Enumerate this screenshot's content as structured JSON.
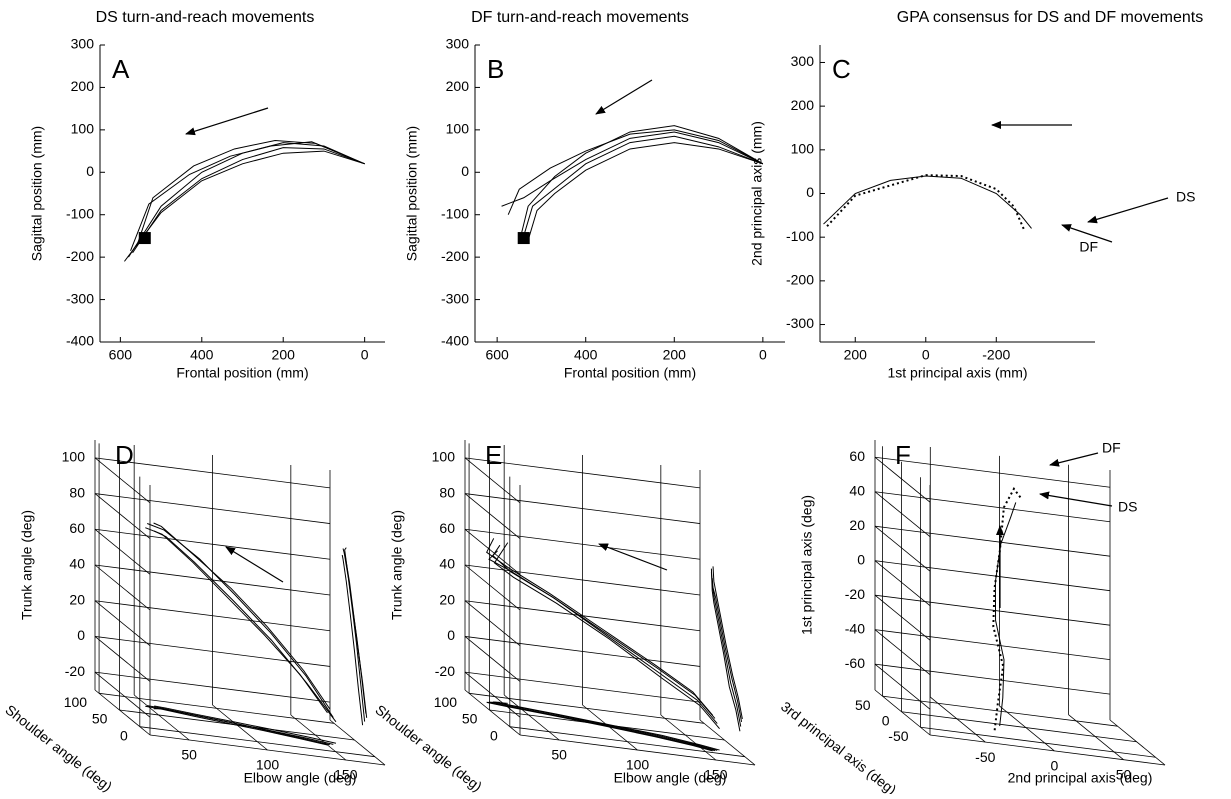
{
  "chart_data": [
    {
      "type": "line",
      "title": "DS turn-and-reach movements",
      "label": "A",
      "xlabel": "Frontal position (mm)",
      "ylabel": "Sagittal position (mm)",
      "xlim": [
        650,
        -50
      ],
      "ylim": [
        -400,
        300
      ],
      "xticks": [
        600,
        400,
        200,
        0
      ],
      "yticks": [
        300,
        200,
        100,
        0,
        -100,
        -200,
        -300,
        -400
      ],
      "series": [
        {
          "color": "#000000",
          "x": [
            0,
            100,
            200,
            300,
            400,
            500,
            580
          ],
          "values": [
            20,
            62,
            70,
            45,
            0,
            -80,
            -200
          ]
        },
        {
          "color": "#000000",
          "x": [
            0,
            100,
            200,
            300,
            400,
            500,
            570
          ],
          "values": [
            20,
            55,
            58,
            30,
            -15,
            -90,
            -190
          ]
        },
        {
          "color": "#000000",
          "x": [
            0,
            120,
            220,
            320,
            420,
            520,
            560
          ],
          "values": [
            20,
            68,
            75,
            55,
            15,
            -60,
            -175
          ]
        },
        {
          "color": "#000000",
          "x": [
            0,
            100,
            200,
            300,
            400,
            500,
            590
          ],
          "values": [
            20,
            50,
            45,
            20,
            -20,
            -95,
            -210
          ]
        },
        {
          "color": "#000000",
          "x": [
            0,
            130,
            230,
            330,
            430,
            530,
            575
          ],
          "values": [
            20,
            72,
            62,
            38,
            -5,
            -75,
            -185
          ]
        }
      ],
      "marker": {
        "x": 540,
        "y": -155
      }
    },
    {
      "type": "line",
      "title": "DF turn-and-reach movements",
      "label": "B",
      "xlabel": "Frontal position (mm)",
      "ylabel": "Sagittal position (mm)",
      "xlim": [
        650,
        -50
      ],
      "ylim": [
        -400,
        300
      ],
      "xticks": [
        600,
        400,
        200,
        0
      ],
      "yticks": [
        300,
        200,
        100,
        0,
        -100,
        -200,
        -300,
        -400
      ],
      "series": [
        {
          "color": "#000000",
          "x": [
            0,
            100,
            200,
            300,
            400,
            480,
            540,
            590
          ],
          "values": [
            20,
            70,
            95,
            80,
            30,
            -20,
            -60,
            -80
          ]
        },
        {
          "color": "#000000",
          "x": [
            0,
            100,
            200,
            300,
            400,
            470,
            530,
            550
          ],
          "values": [
            20,
            80,
            110,
            95,
            45,
            -10,
            -80,
            -165
          ]
        },
        {
          "color": "#000000",
          "x": [
            0,
            100,
            200,
            300,
            400,
            460,
            520,
            540
          ],
          "values": [
            20,
            60,
            85,
            70,
            20,
            -30,
            -80,
            -150
          ]
        },
        {
          "color": "#000000",
          "x": [
            0,
            100,
            200,
            300,
            400,
            480,
            550,
            575
          ],
          "values": [
            20,
            75,
            100,
            90,
            50,
            10,
            -40,
            -100
          ]
        },
        {
          "color": "#000000",
          "x": [
            0,
            100,
            200,
            300,
            400,
            470,
            510,
            530
          ],
          "values": [
            20,
            55,
            70,
            55,
            5,
            -50,
            -90,
            -160
          ]
        }
      ],
      "marker": {
        "x": 540,
        "y": -155
      }
    },
    {
      "type": "line",
      "title": "GPA consensus for DS and DF movements",
      "label": "C",
      "xlabel": "1st principal axis (mm)",
      "ylabel": "2nd principal axis (mm)",
      "xlim": [
        300,
        -480
      ],
      "ylim": [
        -340,
        340
      ],
      "xticks": [
        200,
        0,
        -200
      ],
      "yticks": [
        300,
        200,
        100,
        0,
        -100,
        -200,
        -300
      ],
      "series": [
        {
          "color": "#000000",
          "style": "solid",
          "x": [
            290,
            200,
            100,
            0,
            -100,
            -200,
            -270,
            -300
          ],
          "values": [
            -70,
            0,
            30,
            40,
            35,
            0,
            -50,
            -80
          ]
        },
        {
          "color": "#000000",
          "style": "dotted",
          "x": [
            280,
            200,
            0,
            -100,
            -200,
            -250,
            -280
          ],
          "values": [
            -75,
            -5,
            42,
            40,
            10,
            -30,
            -85
          ]
        }
      ],
      "annotations": [
        "DS",
        "DF"
      ]
    },
    {
      "type": "line3d",
      "label": "D",
      "projections": true,
      "xlabel": "Elbow angle (deg)",
      "ylabel": "Shoulder angle (deg)",
      "zlabel": "Trunk angle (deg)",
      "xlim": [
        25,
        175
      ],
      "ylim": [
        -25,
        110
      ],
      "zlim": [
        -30,
        110
      ],
      "xticks": [
        50,
        100,
        150
      ],
      "yticks": [
        0,
        50,
        100
      ],
      "zticks": [
        -20,
        0,
        20,
        40,
        60,
        80,
        100
      ],
      "series": [
        {
          "color": "#000000",
          "x": [
            155,
            140,
            120,
            100,
            80,
            60,
            50
          ],
          "y": [
            25,
            35,
            45,
            55,
            65,
            75,
            78
          ],
          "z": [
            -15,
            5,
            25,
            42,
            58,
            70,
            72
          ]
        },
        {
          "color": "#000000",
          "x": [
            150,
            135,
            115,
            95,
            75,
            58,
            48
          ],
          "y": [
            20,
            30,
            42,
            52,
            62,
            72,
            75
          ],
          "z": [
            -12,
            6,
            24,
            40,
            56,
            68,
            70
          ]
        },
        {
          "color": "#000000",
          "x": [
            158,
            142,
            122,
            100,
            78,
            62,
            55
          ],
          "y": [
            30,
            40,
            50,
            60,
            70,
            78,
            80
          ],
          "z": [
            -18,
            0,
            20,
            38,
            55,
            66,
            68
          ]
        },
        {
          "color": "#000000",
          "x": [
            152,
            138,
            118,
            98,
            76,
            58,
            52
          ],
          "y": [
            22,
            32,
            44,
            56,
            66,
            74,
            70
          ],
          "z": [
            -10,
            8,
            28,
            45,
            60,
            72,
            74
          ]
        }
      ]
    },
    {
      "type": "line3d",
      "label": "E",
      "projections": true,
      "xlabel": "Elbow angle (deg)",
      "ylabel": "Shoulder angle (deg)",
      "zlabel": "Trunk angle (deg)",
      "xlim": [
        25,
        175
      ],
      "ylim": [
        -25,
        110
      ],
      "zlim": [
        -30,
        110
      ],
      "xticks": [
        50,
        100,
        150
      ],
      "yticks": [
        0,
        50,
        100
      ],
      "zticks": [
        -20,
        0,
        20,
        40,
        60,
        80,
        100
      ],
      "series": [
        {
          "color": "#000000",
          "x": [
            160,
            150,
            130,
            100,
            70,
            45,
            35,
            40
          ],
          "y": [
            10,
            20,
            35,
            50,
            65,
            75,
            80,
            82
          ],
          "z": [
            -15,
            -5,
            5,
            20,
            35,
            45,
            52,
            58
          ]
        },
        {
          "color": "#000000",
          "x": [
            158,
            148,
            128,
            98,
            68,
            44,
            32,
            38
          ],
          "y": [
            8,
            18,
            32,
            48,
            62,
            72,
            78,
            80
          ],
          "z": [
            -12,
            -2,
            8,
            22,
            36,
            46,
            50,
            55
          ]
        },
        {
          "color": "#000000",
          "x": [
            162,
            152,
            132,
            102,
            72,
            47,
            36,
            45
          ],
          "y": [
            12,
            22,
            38,
            52,
            66,
            76,
            80,
            82
          ],
          "z": [
            -18,
            -8,
            2,
            18,
            32,
            42,
            48,
            60
          ]
        },
        {
          "color": "#000000",
          "x": [
            156,
            146,
            126,
            96,
            66,
            42,
            30,
            35
          ],
          "y": [
            6,
            16,
            30,
            46,
            60,
            70,
            76,
            78
          ],
          "z": [
            -10,
            0,
            10,
            24,
            38,
            48,
            54,
            62
          ]
        }
      ]
    },
    {
      "type": "line3d",
      "label": "F",
      "projections": false,
      "xlabel": "2nd principal axis (deg)",
      "ylabel": "3rd principal axis (deg)",
      "zlabel": "1st principal axis (deg)",
      "xlim": [
        -90,
        80
      ],
      "ylim": [
        -75,
        70
      ],
      "zlim": [
        -75,
        70
      ],
      "xticks": [
        -50,
        0,
        50
      ],
      "yticks": [
        -50,
        0,
        50
      ],
      "zticks": [
        -60,
        -40,
        -20,
        0,
        20,
        40,
        60
      ],
      "series": [
        {
          "color": "#000000",
          "style": "solid",
          "x": [
            -30,
            -25,
            -20,
            -22,
            -18,
            -10,
            0,
            5
          ],
          "y": [
            -40,
            -30,
            -15,
            0,
            15,
            30,
            40,
            45
          ],
          "z": [
            -70,
            -55,
            -35,
            -15,
            5,
            25,
            40,
            48
          ]
        },
        {
          "color": "#000000",
          "style": "dotted",
          "x": [
            -35,
            -30,
            -22,
            -25,
            -20,
            -12,
            -5,
            5,
            10
          ],
          "y": [
            -45,
            -35,
            -20,
            -5,
            10,
            25,
            40,
            50,
            48
          ],
          "z": [
            -72,
            -58,
            -38,
            -18,
            2,
            22,
            45,
            55,
            50
          ]
        }
      ],
      "annotations": [
        "DF",
        "DS"
      ]
    }
  ]
}
